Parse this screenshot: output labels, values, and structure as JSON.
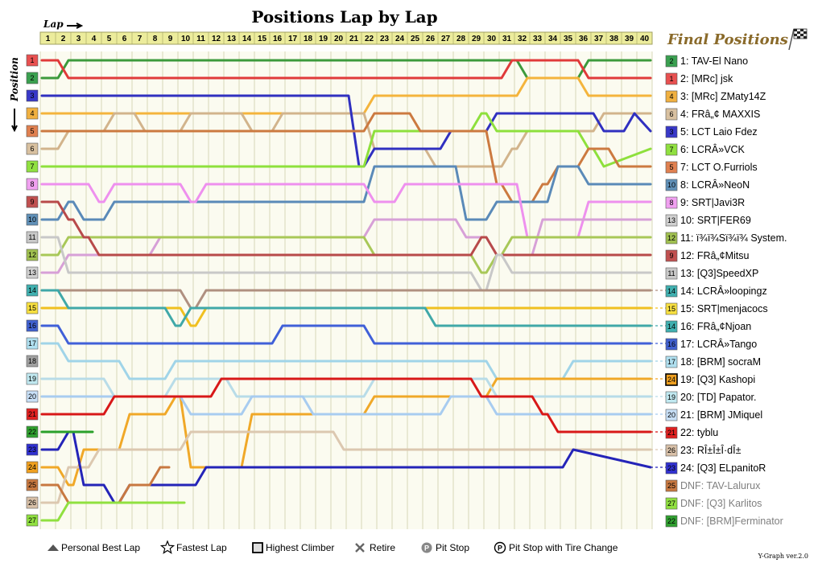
{
  "chart_data": {
    "type": "line",
    "title": "Positions Lap by Lap",
    "xlabel": "Lap",
    "ylabel": "Position",
    "laps": [
      1,
      2,
      3,
      4,
      5,
      6,
      7,
      8,
      9,
      10,
      11,
      12,
      13,
      14,
      15,
      16,
      17,
      18,
      19,
      20,
      21,
      22,
      23,
      24,
      25,
      26,
      27,
      28,
      29,
      30,
      31,
      32,
      33,
      34,
      35,
      36,
      37,
      38,
      39,
      40
    ],
    "positions": [
      1,
      2,
      3,
      4,
      5,
      6,
      7,
      8,
      9,
      10,
      11,
      12,
      13,
      14,
      15,
      16,
      17,
      18,
      19,
      20,
      21,
      22,
      23,
      24,
      25,
      26,
      27
    ],
    "position_colors": [
      "#e85050",
      "#3aa050",
      "#3838c8",
      "#f0b040",
      "#e08050",
      "#d8c0a0",
      "#90e040",
      "#f0a0f0",
      "#c05050",
      "#6090b8",
      "#c8c8c8",
      "#a0c050",
      "#d0d0d0",
      "#40b0b0",
      "#f8e040",
      "#4060d0",
      "#b0e0f0",
      "#a0a0a0",
      "#c0e8f0",
      "#c8e0f8",
      "#e02020",
      "#30a030",
      "#3030d0",
      "#f0a020",
      "#c87840",
      "#d8c0a8",
      "#90e040"
    ],
    "legend_title": "Final Positions",
    "series": [
      {
        "name": "TAV-El Nano",
        "color": "#3c9a3c",
        "start": 2,
        "changes": [
          [
            2,
            1
          ],
          [
            32,
            2
          ],
          [
            36,
            1
          ]
        ],
        "end": 1,
        "box": "2"
      },
      {
        "name": "[MRc] jsk",
        "color": "#e03a3a",
        "start": 1,
        "changes": [
          [
            2,
            2
          ],
          [
            31,
            1
          ],
          [
            36,
            2
          ]
        ],
        "end": 2,
        "box": "1"
      },
      {
        "name": "[MRc] ZMaty14Z",
        "color": "#f4b43c",
        "start": 4,
        "changes": [
          [
            22,
            3
          ],
          [
            31,
            3
          ],
          [
            32,
            2
          ],
          [
            36,
            3
          ]
        ],
        "end": 3,
        "box": "4"
      },
      {
        "name": "FRâ„¢ MAXXIS",
        "color": "#d2b48c",
        "start": 6,
        "changes": [
          [
            2,
            5
          ],
          [
            5,
            4
          ],
          [
            7,
            5
          ],
          [
            10,
            4
          ],
          [
            14,
            5
          ],
          [
            16,
            4
          ],
          [
            22,
            6
          ],
          [
            26,
            7
          ],
          [
            31,
            6
          ],
          [
            32,
            5
          ],
          [
            37,
            4
          ]
        ],
        "end": 4,
        "box": "6"
      },
      {
        "name": "LCT Laio Fdez",
        "color": "#3030c0",
        "start": 3,
        "changes": [
          [
            21,
            7
          ],
          [
            22,
            6
          ],
          [
            27,
            5
          ],
          [
            30,
            4
          ],
          [
            37,
            5
          ],
          [
            39,
            4
          ]
        ],
        "end": 5,
        "box": "3"
      },
      {
        "name": "LCRÂ»VCK",
        "color": "#8ee03c",
        "start": 7,
        "changes": [
          [
            22,
            5
          ],
          [
            29,
            4
          ],
          [
            30,
            5
          ],
          [
            36,
            6
          ],
          [
            37,
            7
          ]
        ],
        "end": 6,
        "box": "7"
      },
      {
        "name": "LCT O.Furriols",
        "color": "#cc7a40",
        "start": 5,
        "changes": [
          [
            22,
            4
          ],
          [
            25,
            5
          ],
          [
            30,
            8
          ],
          [
            31,
            9
          ],
          [
            33,
            8
          ],
          [
            34,
            7
          ],
          [
            36,
            6
          ],
          [
            38,
            7
          ]
        ],
        "end": 7,
        "box": "5"
      },
      {
        "name": "LCRÂ»NeoN",
        "color": "#5a8ab8",
        "start": 10,
        "changes": [
          [
            2,
            9
          ],
          [
            3,
            10
          ],
          [
            5,
            9
          ],
          [
            8,
            9
          ],
          [
            22,
            7
          ],
          [
            28,
            10
          ],
          [
            30,
            9
          ],
          [
            34,
            7
          ],
          [
            36,
            8
          ]
        ],
        "end": 8,
        "box": "10"
      },
      {
        "name": "SRT|Javi3R",
        "color": "#ee90ee",
        "start": 8,
        "changes": [
          [
            3,
            8
          ],
          [
            4,
            9
          ],
          [
            5,
            8
          ],
          [
            10,
            9
          ],
          [
            11,
            8
          ],
          [
            22,
            9
          ],
          [
            24,
            8
          ],
          [
            32,
            11
          ],
          [
            36,
            9
          ]
        ],
        "end": 9,
        "box": "8"
      },
      {
        "name": "SRT|FER69",
        "color": "#d7a0d7",
        "start": 13,
        "changes": [
          [
            2,
            12
          ],
          [
            8,
            11
          ],
          [
            22,
            10
          ],
          [
            28,
            11
          ],
          [
            30,
            12
          ],
          [
            33,
            10
          ]
        ],
        "end": 10,
        "box": "13"
      },
      {
        "name": "ï¾ï¾Sï¾ï¾ System.",
        "color": "#a8c858",
        "start": 12,
        "changes": [
          [
            2,
            11
          ],
          [
            22,
            12
          ],
          [
            29,
            13
          ],
          [
            30,
            12
          ],
          [
            31,
            11
          ]
        ],
        "end": 11,
        "box": "12"
      },
      {
        "name": "FRâ„¢Mitsu",
        "color": "#b84a4a",
        "start": 9,
        "changes": [
          [
            2,
            10
          ],
          [
            3,
            11
          ],
          [
            4,
            12
          ],
          [
            29,
            11
          ],
          [
            30,
            12
          ]
        ],
        "end": 12,
        "box": "9"
      },
      {
        "name": "[Q3]SpeedXP",
        "color": "#c8c8c8",
        "start": 11,
        "changes": [
          [
            2,
            13
          ],
          [
            3,
            13
          ],
          [
            29,
            14
          ],
          [
            30,
            12
          ],
          [
            31,
            13
          ]
        ],
        "end": 13,
        "box": "11"
      },
      {
        "name": "LCRÂ»loopingz",
        "color": "#b09080",
        "start": 14,
        "changes": [
          [
            2,
            14
          ],
          [
            10,
            15
          ],
          [
            11,
            14
          ],
          [
            22,
            14
          ],
          [
            26,
            14
          ],
          [
            29,
            14
          ],
          [
            36,
            14
          ]
        ],
        "end": 14,
        "box": "14",
        "dashed": true
      },
      {
        "name": "SRT|menjacocs",
        "color": "#f0c020",
        "start": 15,
        "changes": [
          [
            2,
            15
          ],
          [
            10,
            16
          ],
          [
            11,
            15
          ],
          [
            30,
            15
          ]
        ],
        "end": 15,
        "box": "15",
        "dashed": true
      },
      {
        "name": "FRâ„¢Njoan",
        "color": "#40a8a8",
        "start": 14,
        "changes": [
          [
            2,
            15
          ],
          [
            3,
            15
          ],
          [
            9,
            16
          ],
          [
            10,
            15
          ],
          [
            26,
            16
          ],
          [
            36,
            16
          ]
        ],
        "end": 16,
        "box": "14",
        "dashed": true
      },
      {
        "name": "LCRÂ»Tango",
        "color": "#4060d8",
        "start": 16,
        "changes": [
          [
            2,
            17
          ],
          [
            4,
            17
          ],
          [
            16,
            16
          ],
          [
            19,
            16
          ],
          [
            22,
            17
          ],
          [
            26,
            17
          ],
          [
            36,
            17
          ]
        ],
        "end": 17,
        "box": "16",
        "dashed": true
      },
      {
        "name": "[BRM] socraM",
        "color": "#a0d4e8",
        "start": 17,
        "changes": [
          [
            2,
            18
          ],
          [
            6,
            19
          ],
          [
            9,
            18
          ],
          [
            14,
            18
          ],
          [
            22,
            18
          ],
          [
            30,
            19
          ],
          [
            35,
            18
          ]
        ],
        "end": 18,
        "box": "17",
        "dashed": true
      },
      {
        "name": "[Q3] Kashopi",
        "color": "#f0a828",
        "start": 24,
        "changes": [
          [
            2,
            25
          ],
          [
            3,
            23
          ],
          [
            6,
            21
          ],
          [
            9,
            20
          ],
          [
            10,
            24
          ],
          [
            14,
            21
          ],
          [
            22,
            20
          ],
          [
            30,
            19
          ],
          [
            34,
            19
          ]
        ],
        "end": 19,
        "box": "24",
        "boxed": true,
        "dashed": true
      },
      {
        "name": "[TD] Papator.",
        "color": "#b8dce8",
        "start": 19,
        "changes": [
          [
            2,
            19
          ],
          [
            5,
            20
          ],
          [
            9,
            19
          ],
          [
            13,
            20
          ],
          [
            22,
            19
          ],
          [
            30,
            20
          ],
          [
            33,
            20
          ]
        ],
        "end": 20,
        "box": "19",
        "dashed": true
      },
      {
        "name": "[BRM] JMiquel",
        "color": "#a8ccf0",
        "start": 20,
        "changes": [
          [
            2,
            20
          ],
          [
            10,
            21
          ],
          [
            14,
            20
          ],
          [
            18,
            21
          ],
          [
            27,
            20
          ],
          [
            30,
            21
          ]
        ],
        "end": 21,
        "box": "20",
        "dashed": true
      },
      {
        "name": "tyblu",
        "color": "#d81818",
        "start": 21,
        "changes": [
          [
            2,
            21
          ],
          [
            3,
            21
          ],
          [
            5,
            20
          ],
          [
            12,
            19
          ],
          [
            22,
            19
          ],
          [
            27,
            19
          ],
          [
            29,
            20
          ],
          [
            33,
            21
          ],
          [
            34,
            22
          ]
        ],
        "end": 22,
        "box": "21",
        "dashed": true
      },
      {
        "name": "RÎ±Î±Î·dÎ±",
        "color": "#dcc8b0",
        "start": 26,
        "changes": [
          [
            2,
            24
          ],
          [
            4,
            23
          ],
          [
            10,
            22
          ],
          [
            15,
            22
          ],
          [
            20,
            23
          ],
          [
            26,
            23
          ],
          [
            35,
            23
          ]
        ],
        "end": 23,
        "box": "26",
        "dashed": true
      },
      {
        "name": "[Q3] ELpanitoR",
        "color": "#2424b8",
        "start": 23,
        "changes": [
          [
            2,
            22
          ],
          [
            3,
            25
          ],
          [
            5,
            26
          ],
          [
            6,
            25
          ],
          [
            11,
            24
          ],
          [
            35,
            23
          ]
        ],
        "end": 24,
        "box": "23",
        "dotted": true
      },
      {
        "name": "TAV-Lalurux",
        "color": "#c87840",
        "start": 25,
        "changes": [
          [
            2,
            26
          ],
          [
            5,
            26
          ],
          [
            6,
            25
          ],
          [
            8,
            24
          ]
        ],
        "end": "DNF",
        "box": "25",
        "dnf": true
      },
      {
        "name": "[Q3] Karlitos",
        "color": "#90e040",
        "start": 27,
        "changes": [
          [
            2,
            26
          ],
          [
            3,
            26
          ],
          [
            8,
            26
          ],
          [
            9,
            26
          ]
        ],
        "end": "DNF",
        "box": "27",
        "dnf": true
      },
      {
        "name": "[BRM]Ferminator",
        "color": "#2aa02a",
        "start": 22,
        "changes": [
          [
            2,
            22
          ],
          [
            3,
            22
          ]
        ],
        "end": "DNF",
        "box": "22",
        "dnf": true
      }
    ],
    "legend_items": [
      {
        "icon": "personal-best-triangle",
        "label": "Personal Best Lap"
      },
      {
        "icon": "fastest-star",
        "label": "Fastest Lap"
      },
      {
        "icon": "highest-climber-box",
        "label": "Highest Climber"
      },
      {
        "icon": "retire-x",
        "label": "Retire"
      },
      {
        "icon": "pit-stop-p",
        "label": "Pit Stop"
      },
      {
        "icon": "pit-stop-tire-p",
        "label": "Pit Stop with Tire Change"
      }
    ],
    "version": "Y-Graph ver.2.0"
  }
}
